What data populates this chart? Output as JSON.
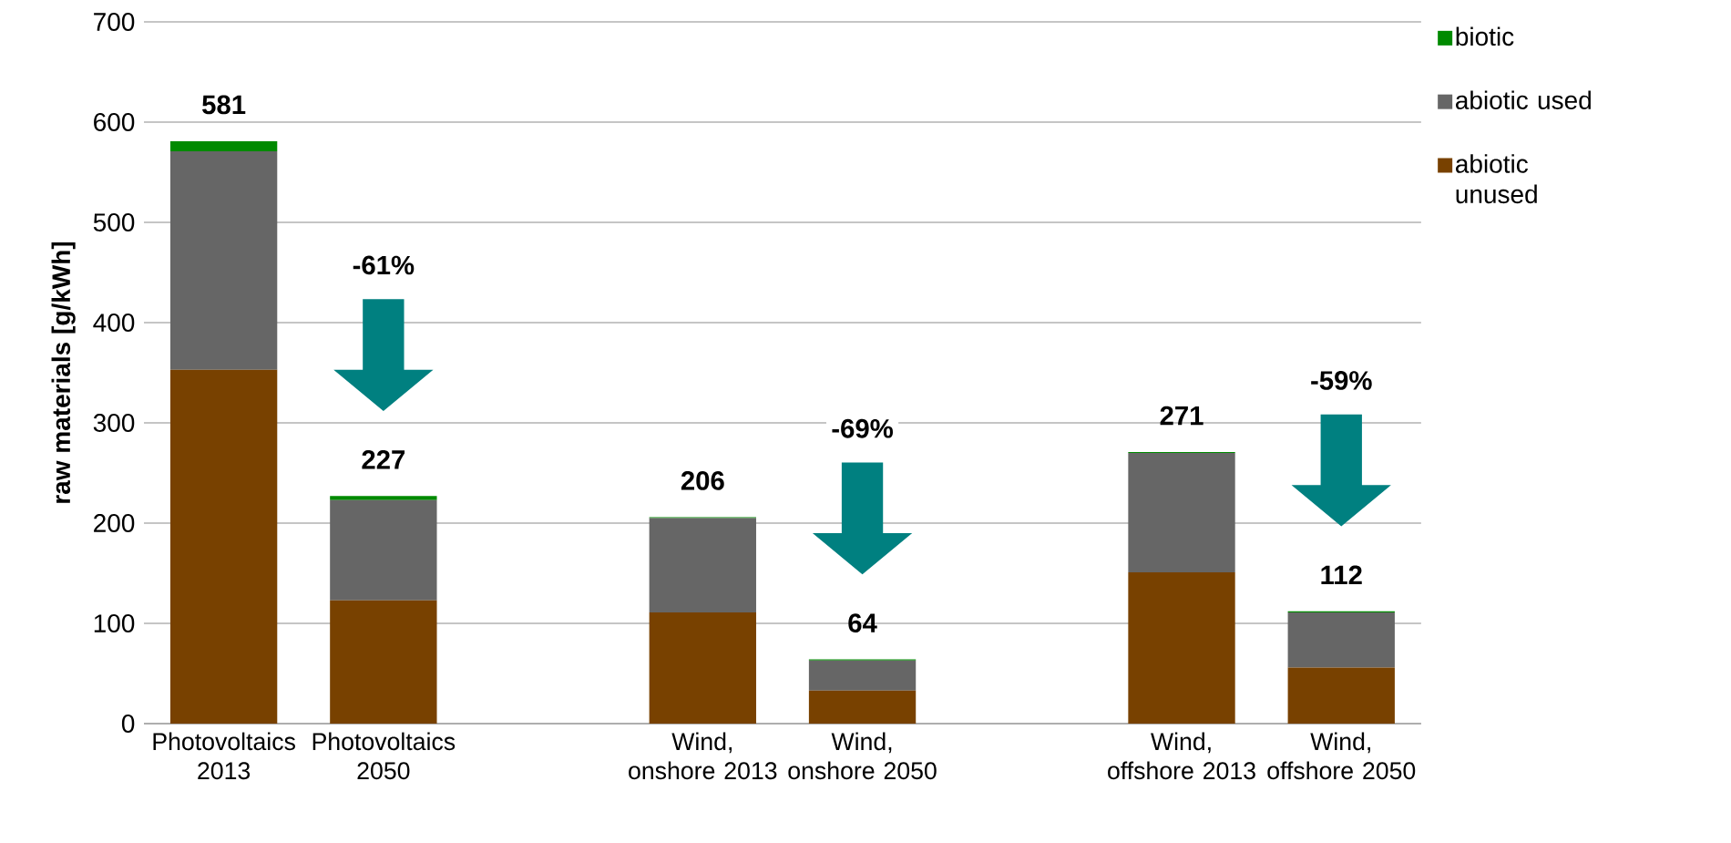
{
  "chart_data": {
    "type": "bar",
    "stacked": true,
    "ylabel": "raw materials [g/kWh]",
    "categories": [
      "Photovoltaics 2013",
      "Photovoltaics 2050",
      null,
      "Wind, onshore 2013",
      "Wind, onshore 2050",
      null,
      "Wind, offshore 2013",
      "Wind, offshore 2050"
    ],
    "series": [
      {
        "name": "abiotic unused",
        "color": "#784100",
        "values": [
          353,
          123,
          null,
          111,
          33,
          null,
          151,
          56
        ]
      },
      {
        "name": "abiotic used",
        "color": "#666666",
        "values": [
          218,
          100,
          null,
          94,
          30,
          null,
          119,
          55
        ]
      },
      {
        "name": "biotic",
        "color": "#008a00",
        "values": [
          10,
          4,
          null,
          1,
          1,
          null,
          1,
          1
        ]
      }
    ],
    "totals": [
      "581",
      "227",
      null,
      "206",
      "64",
      null,
      "271",
      "112"
    ],
    "annotations": [
      "-61%",
      "-69%",
      "-59%"
    ],
    "ylim": [
      0,
      700
    ],
    "yticks": [
      0,
      100,
      200,
      300,
      400,
      500,
      600,
      700
    ],
    "grid": "y",
    "legend": "top right"
  }
}
